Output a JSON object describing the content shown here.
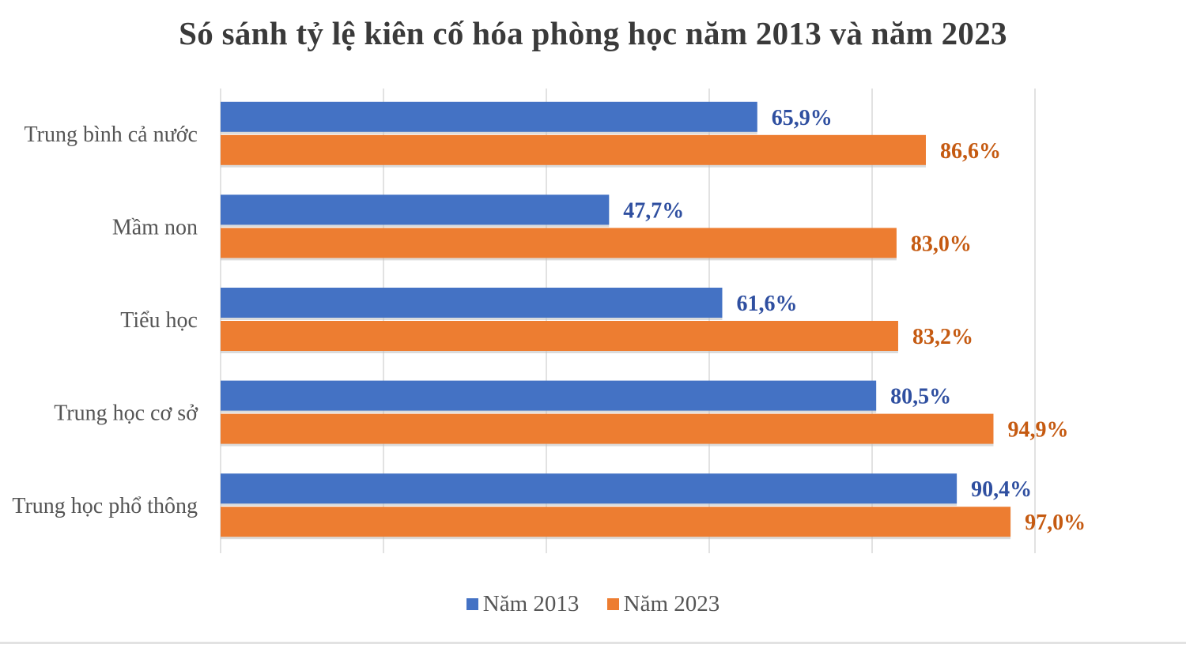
{
  "colors": {
    "series_2013": "#4472C4",
    "series_2023": "#ED7D31",
    "grid": "#d9d9d9",
    "label_2013": "#2F4FA0",
    "label_2023": "#C55A11"
  },
  "chart_data": {
    "type": "bar",
    "orientation": "horizontal",
    "title": "Só sánh tỷ lệ kiên cố hóa phòng học năm 2013 và năm 2023",
    "categories": [
      "Trung bình cả nước",
      "Mầm non",
      "Tiểu học",
      "Trung học cơ sở",
      "Trung học phổ thông"
    ],
    "series": [
      {
        "name": "Năm 2013",
        "values": [
          65.9,
          47.7,
          61.6,
          80.5,
          90.4
        ],
        "labels": [
          "65,9%",
          "47,7%",
          "61,6%",
          "80,5%",
          "90,4%"
        ]
      },
      {
        "name": "Năm 2023",
        "values": [
          86.6,
          83.0,
          83.2,
          94.9,
          97.0
        ],
        "labels": [
          "86,6%",
          "83,0%",
          "83,2%",
          "94,9%",
          "97,0%"
        ]
      }
    ],
    "xlim": [
      0,
      100
    ],
    "grid": true,
    "legend_position": "bottom"
  }
}
